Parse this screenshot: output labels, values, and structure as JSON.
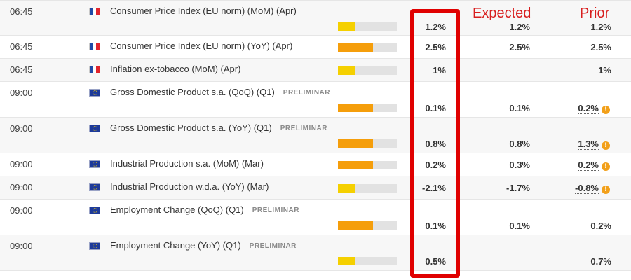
{
  "headers": {
    "expected": "Expected",
    "prior": "Prior"
  },
  "colors": {
    "highlight": "#e00000",
    "bar_high": "#f59e0b",
    "bar_low": "#f5d000",
    "warn": "#f2a01a"
  },
  "events": [
    {
      "time": "06:45",
      "flag": "fr-flag-icon",
      "name": "Consumer Price Index (EU norm) (MoM) (Apr)",
      "tag": "",
      "importance_level": 0.3,
      "bar_color": "#f5d000",
      "actual": "1.2%",
      "expected": "1.2%",
      "prior": "1.2%",
      "prior_revised": false
    },
    {
      "time": "06:45",
      "flag": "fr-flag-icon",
      "name": "Consumer Price Index (EU norm) (YoY) (Apr)",
      "tag": "",
      "importance_level": 0.6,
      "bar_color": "#f59e0b",
      "actual": "2.5%",
      "expected": "2.5%",
      "prior": "2.5%",
      "prior_revised": false
    },
    {
      "time": "06:45",
      "flag": "fr-flag-icon",
      "name": "Inflation ex-tobacco (MoM) (Apr)",
      "tag": "",
      "importance_level": 0.3,
      "bar_color": "#f5d000",
      "actual": "1%",
      "expected": "",
      "prior": "1%",
      "prior_revised": false
    },
    {
      "time": "09:00",
      "flag": "eu-flag-icon",
      "name": "Gross Domestic Product s.a. (QoQ) (Q1)",
      "tag": "PRELIMINAR",
      "importance_level": 0.6,
      "bar_color": "#f59e0b",
      "actual": "0.1%",
      "expected": "0.1%",
      "prior": "0.2%",
      "prior_revised": true
    },
    {
      "time": "09:00",
      "flag": "eu-flag-icon",
      "name": "Gross Domestic Product s.a. (YoY) (Q1)",
      "tag": "PRELIMINAR",
      "importance_level": 0.6,
      "bar_color": "#f59e0b",
      "actual": "0.8%",
      "expected": "0.8%",
      "prior": "1.3%",
      "prior_revised": true
    },
    {
      "time": "09:00",
      "flag": "eu-flag-icon",
      "name": "Industrial Production s.a. (MoM) (Mar)",
      "tag": "",
      "importance_level": 0.6,
      "bar_color": "#f59e0b",
      "actual": "0.2%",
      "expected": "0.3%",
      "prior": "0.2%",
      "prior_revised": true
    },
    {
      "time": "09:00",
      "flag": "eu-flag-icon",
      "name": "Industrial Production w.d.a. (YoY) (Mar)",
      "tag": "",
      "importance_level": 0.3,
      "bar_color": "#f5d000",
      "actual": "-2.1%",
      "expected": "-1.7%",
      "prior": "-0.8%",
      "prior_revised": true
    },
    {
      "time": "09:00",
      "flag": "eu-flag-icon",
      "name": "Employment Change (QoQ) (Q1)",
      "tag": "PRELIMINAR",
      "importance_level": 0.6,
      "bar_color": "#f59e0b",
      "actual": "0.1%",
      "expected": "0.1%",
      "prior": "0.2%",
      "prior_revised": false
    },
    {
      "time": "09:00",
      "flag": "eu-flag-icon",
      "name": "Employment Change (YoY) (Q1)",
      "tag": "PRELIMINAR",
      "importance_level": 0.3,
      "bar_color": "#f5d000",
      "actual": "0.5%",
      "expected": "",
      "prior": "0.7%",
      "prior_revised": false
    }
  ]
}
